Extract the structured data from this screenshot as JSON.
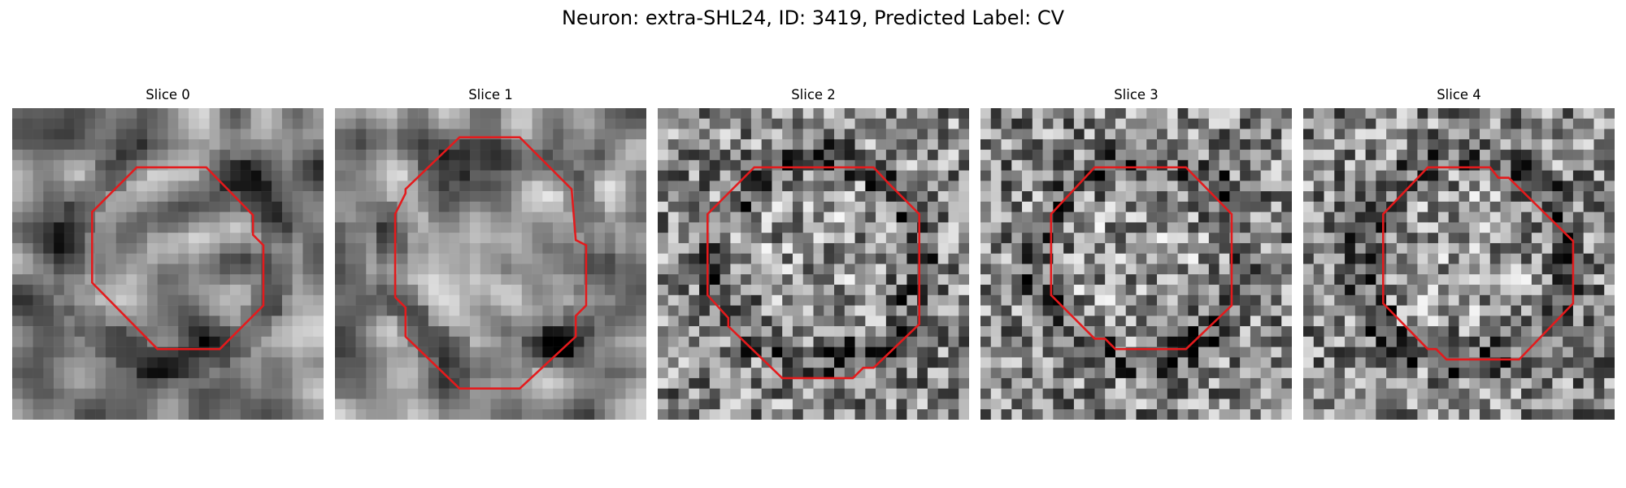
{
  "figure": {
    "title": "Neuron: extra-SHL24, ID: 3419, Predicted Label: CV",
    "contour_color": "#e41a1c",
    "colormap": "gray",
    "panels": [
      {
        "title": "Slice 0",
        "smoothness": "blurred"
      },
      {
        "title": "Slice 1",
        "smoothness": "blurred"
      },
      {
        "title": "Slice 2",
        "smoothness": "noisy"
      },
      {
        "title": "Slice 3",
        "smoothness": "noisy"
      },
      {
        "title": "Slice 4",
        "smoothness": "noisy"
      }
    ]
  }
}
